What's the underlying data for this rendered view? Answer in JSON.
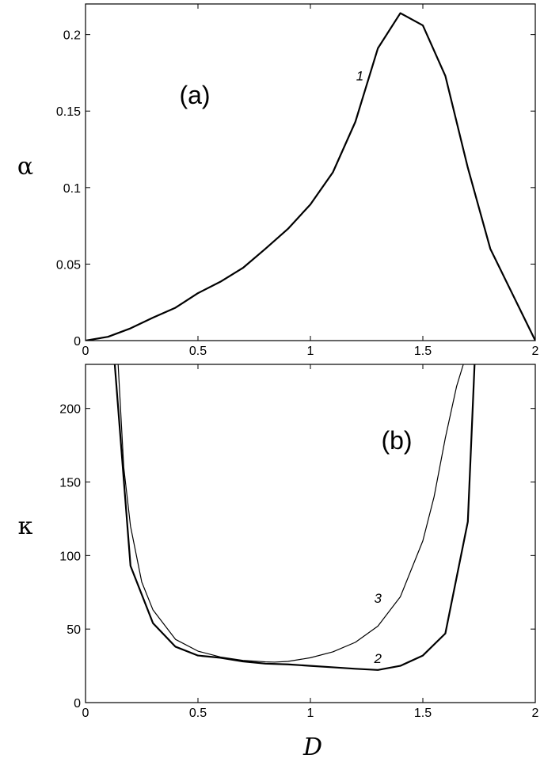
{
  "chart_data": [
    {
      "type": "line",
      "panel_label": "(a)",
      "xlabel": "",
      "ylabel": "α",
      "xlim": [
        0,
        2
      ],
      "ylim": [
        0,
        0.22
      ],
      "x_ticks": [
        0,
        0.5,
        1,
        1.5,
        2
      ],
      "x_tick_labels": [
        "0",
        "0.5",
        "1",
        "1.5",
        "2"
      ],
      "y_ticks": [
        0,
        0.05,
        0.1,
        0.15,
        0.2
      ],
      "y_tick_labels": [
        "0",
        "0.05",
        "0.1",
        "0.15",
        "0.2"
      ],
      "grid": false,
      "series": [
        {
          "name": "1",
          "label_at": [
            1.22,
            0.17
          ],
          "stroke_width": 2.2,
          "x": [
            0,
            0.1,
            0.2,
            0.3,
            0.4,
            0.5,
            0.6,
            0.7,
            0.8,
            0.9,
            1.0,
            1.1,
            1.2,
            1.3,
            1.4,
            1.5,
            1.6,
            1.7,
            1.8,
            1.9,
            2.0
          ],
          "y": [
            0,
            0.0025,
            0.008,
            0.015,
            0.0215,
            0.031,
            0.0385,
            0.0475,
            0.06,
            0.073,
            0.089,
            0.11,
            0.143,
            0.191,
            0.214,
            0.206,
            0.173,
            0.113,
            0.06,
            0.03,
            0
          ]
        }
      ]
    },
    {
      "type": "line",
      "panel_label": "(b)",
      "xlabel": "D",
      "ylabel": "κ",
      "xlim": [
        0,
        2
      ],
      "ylim": [
        0,
        230
      ],
      "x_ticks": [
        0,
        0.5,
        1,
        1.5,
        2
      ],
      "x_tick_labels": [
        "0",
        "0.5",
        "1",
        "1.5",
        "2"
      ],
      "y_ticks": [
        0,
        50,
        100,
        150,
        200
      ],
      "y_tick_labels": [
        "0",
        "50",
        "100",
        "150",
        "200"
      ],
      "grid": false,
      "series": [
        {
          "name": "2",
          "label_at": [
            1.3,
            27
          ],
          "stroke_width": 2.2,
          "x": [
            0.13,
            0.2,
            0.3,
            0.4,
            0.5,
            0.6,
            0.7,
            0.8,
            0.9,
            1.0,
            1.1,
            1.2,
            1.3,
            1.4,
            1.5,
            1.6,
            1.7,
            1.73
          ],
          "y": [
            230,
            93,
            54,
            38,
            32,
            30.5,
            28,
            26.5,
            26,
            25,
            24,
            23,
            22.2,
            25,
            32,
            47,
            123,
            230
          ]
        },
        {
          "name": "3",
          "label_at": [
            1.3,
            68
          ],
          "stroke_width": 1.2,
          "x": [
            0.145,
            0.17,
            0.2,
            0.25,
            0.3,
            0.4,
            0.5,
            0.6,
            0.7,
            0.8,
            0.84,
            0.9,
            1.0,
            1.1,
            1.2,
            1.3,
            1.4,
            1.5,
            1.55,
            1.6,
            1.65,
            1.68
          ],
          "y": [
            230,
            160,
            120,
            82,
            63,
            43,
            35,
            31,
            28.7,
            27.7,
            27.5,
            28,
            30.5,
            34.5,
            41,
            52,
            72,
            110,
            140,
            180,
            215,
            230
          ]
        }
      ]
    }
  ]
}
